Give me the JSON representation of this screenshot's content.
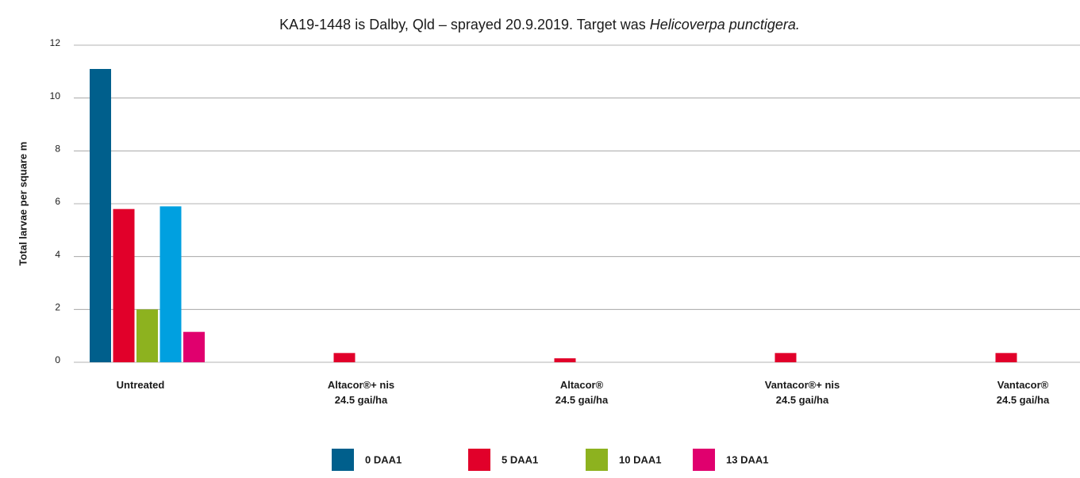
{
  "chart_data": {
    "type": "bar",
    "title": "KA19-1448 is Dalby, Qld – sprayed 20.9.2019. Target was ",
    "title_italic": "Helicoverpa punctigera.",
    "y_label": "Total larvae per square m",
    "categories": [
      [
        "Untreated"
      ],
      [
        "Altacor®+ nis",
        "24.5 gai/ha"
      ],
      [
        "Altacor®",
        "24.5 gai/ha"
      ],
      [
        "Vantacor®+ nis",
        "24.5 gai/ha"
      ],
      [
        "Vantacor®",
        "24.5 gai/ha"
      ]
    ],
    "series": [
      {
        "name": "0 DAA1",
        "color": "#005f8c",
        "values": [
          11.1,
          0,
          0,
          0,
          0
        ]
      },
      {
        "name": "5 DAA1",
        "color": "#e1002a",
        "values": [
          5.8,
          0.35,
          0.15,
          0.35,
          0.35
        ]
      },
      {
        "name": "10 DAA1",
        "color": "#8db21f",
        "values": [
          2.0,
          0,
          0,
          0,
          0
        ]
      },
      {
        "name": null,
        "color": "#00a0e0",
        "values": [
          5.9,
          0,
          0,
          0,
          0
        ]
      },
      {
        "name": "13 DAA1",
        "color": "#e0006e",
        "values": [
          1.15,
          0,
          0,
          0,
          0
        ]
      }
    ],
    "ylim": [
      0,
      12
    ],
    "yticks": [
      0,
      2,
      4,
      6,
      8,
      10,
      12
    ],
    "grid": true
  }
}
